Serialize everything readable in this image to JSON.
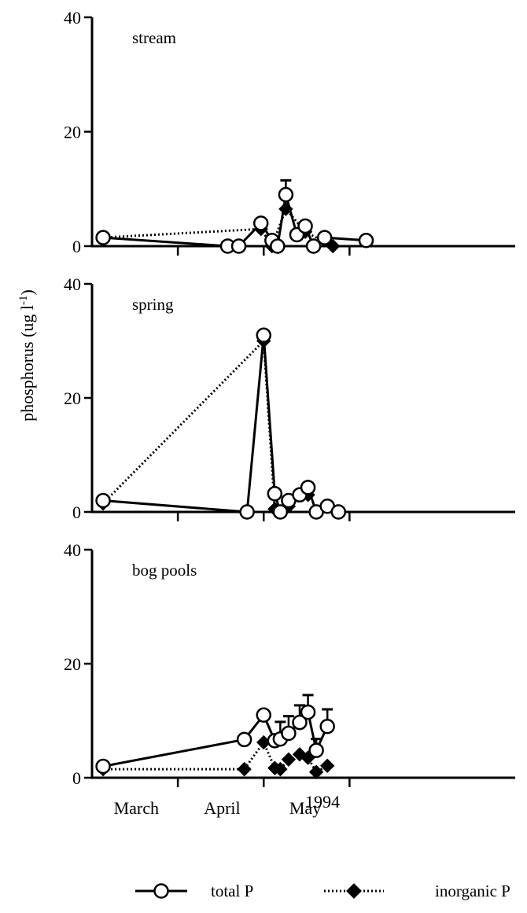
{
  "chart_data": {
    "type": "line",
    "ylabel": "phosphorus (ug l",
    "ylabel_superscript": "-1",
    "ylabel_close": ")",
    "xlabel": "1994",
    "ylim": [
      0,
      40
    ],
    "yticks": [
      0,
      20,
      40
    ],
    "months": [
      "March",
      "April",
      "May"
    ],
    "legend": {
      "total": "total P",
      "inorganic": "inorganic P"
    },
    "panels": [
      {
        "label": "stream",
        "total_p": [
          {
            "date": "1994-03-04",
            "value": 1.5
          },
          {
            "date": "1994-04-18",
            "value": 0
          },
          {
            "date": "1994-04-22",
            "value": 0
          },
          {
            "date": "1994-04-30",
            "value": 4
          },
          {
            "date": "1994-05-04",
            "value": 1
          },
          {
            "date": "1994-05-06",
            "value": 0
          },
          {
            "date": "1994-05-09",
            "value": 9,
            "error": 2.5
          },
          {
            "date": "1994-05-13",
            "value": 2
          },
          {
            "date": "1994-05-16",
            "value": 3.5
          },
          {
            "date": "1994-05-19",
            "value": 0
          },
          {
            "date": "1994-05-23",
            "value": 1.5
          },
          {
            "date": "1994-06-07",
            "value": 1
          }
        ],
        "inorganic_p": [
          {
            "date": "1994-03-04",
            "value": 1.5
          },
          {
            "date": "1994-04-30",
            "value": 3
          },
          {
            "date": "1994-05-04",
            "value": 0
          },
          {
            "date": "1994-05-09",
            "value": 6.5
          },
          {
            "date": "1994-05-16",
            "value": 2.5
          },
          {
            "date": "1994-05-26",
            "value": 0
          }
        ]
      },
      {
        "label": "spring",
        "total_p": [
          {
            "date": "1994-03-04",
            "value": 2
          },
          {
            "date": "1994-04-25",
            "value": 0
          },
          {
            "date": "1994-05-01",
            "value": 31
          },
          {
            "date": "1994-05-05",
            "value": 3.2
          },
          {
            "date": "1994-05-07",
            "value": 0
          },
          {
            "date": "1994-05-10",
            "value": 2
          },
          {
            "date": "1994-05-14",
            "value": 3
          },
          {
            "date": "1994-05-17",
            "value": 4.3
          },
          {
            "date": "1994-05-20",
            "value": 0
          },
          {
            "date": "1994-05-24",
            "value": 1
          },
          {
            "date": "1994-05-28",
            "value": 0
          }
        ],
        "inorganic_p": [
          {
            "date": "1994-03-04",
            "value": 1.5
          },
          {
            "date": "1994-05-01",
            "value": 30
          },
          {
            "date": "1994-05-05",
            "value": 0.5
          },
          {
            "date": "1994-05-10",
            "value": 1
          },
          {
            "date": "1994-05-17",
            "value": 3
          }
        ]
      },
      {
        "label": "bog pools",
        "total_p": [
          {
            "date": "1994-03-04",
            "value": 2
          },
          {
            "date": "1994-04-24",
            "value": 6.7
          },
          {
            "date": "1994-05-01",
            "value": 11
          },
          {
            "date": "1994-05-05",
            "value": 6.5
          },
          {
            "date": "1994-05-07",
            "value": 6.8,
            "error": 3
          },
          {
            "date": "1994-05-10",
            "value": 7.8,
            "error": 3
          },
          {
            "date": "1994-05-14",
            "value": 9.7,
            "error": 3
          },
          {
            "date": "1994-05-17",
            "value": 11.5,
            "error": 3
          },
          {
            "date": "1994-05-20",
            "value": 4.8,
            "error": 2
          },
          {
            "date": "1994-05-24",
            "value": 9,
            "error": 3
          }
        ],
        "inorganic_p": [
          {
            "date": "1994-03-04",
            "value": 1.5
          },
          {
            "date": "1994-04-24",
            "value": 1.5
          },
          {
            "date": "1994-05-01",
            "value": 6.2
          },
          {
            "date": "1994-05-05",
            "value": 1.7
          },
          {
            "date": "1994-05-07",
            "value": 1.5
          },
          {
            "date": "1994-05-10",
            "value": 3.2
          },
          {
            "date": "1994-05-14",
            "value": 4.1
          },
          {
            "date": "1994-05-17",
            "value": 3.5
          },
          {
            "date": "1994-05-20",
            "value": 1
          },
          {
            "date": "1994-05-24",
            "value": 2.1
          }
        ]
      }
    ]
  }
}
